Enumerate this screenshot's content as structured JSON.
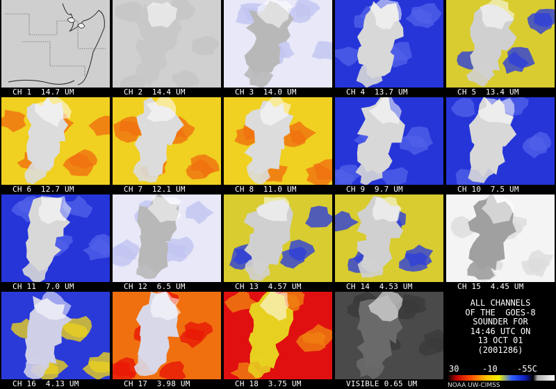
{
  "tiles": [
    {
      "label": "CH 1  14.7 UM",
      "style": "map"
    },
    {
      "label": "CH 2  14.4 UM",
      "style": "gray"
    },
    {
      "label": "CH 3  14.0 UM",
      "style": "pale"
    },
    {
      "label": "CH 4  13.7 UM",
      "style": "blue"
    },
    {
      "label": "CH 5  13.4 UM",
      "style": "blueyellow"
    },
    {
      "label": "CH 6  12.7 UM",
      "style": "warm"
    },
    {
      "label": "CH 7  12.1 UM",
      "style": "warm"
    },
    {
      "label": "CH 8  11.0 UM",
      "style": "warm"
    },
    {
      "label": "CH 9  9.7 UM",
      "style": "blue"
    },
    {
      "label": "CH 10  7.5 UM",
      "style": "blue"
    },
    {
      "label": "CH 11  7.0 UM",
      "style": "blue"
    },
    {
      "label": "CH 12  6.5 UM",
      "style": "pale"
    },
    {
      "label": "CH 13  4.57 UM",
      "style": "blueyellow"
    },
    {
      "label": "CH 14  4.53 UM",
      "style": "blueyellow"
    },
    {
      "label": "CH 15  4.45 UM",
      "style": "speckle"
    },
    {
      "label": "CH 16  4.13 UM",
      "style": "warmblue"
    },
    {
      "label": "CH 17  3.98 UM",
      "style": "hot"
    },
    {
      "label": "CH 18  3.75 UM",
      "style": "hotter"
    },
    {
      "label": "VISIBLE 0.65 UM",
      "style": "visible"
    }
  ],
  "caption": [
    "ALL CHANNELS",
    "OF THE  GOES-8",
    "SOUNDER FOR",
    "14:46 UTC ON",
    "13 OCT 01",
    "(2001286)"
  ],
  "scale": {
    "left": "30",
    "mid": "-10",
    "right": "-55C"
  },
  "credit": "NOAA UW-CIMSS",
  "colors": {
    "background": "#000000",
    "text": "#ffffff",
    "blue": "#2233dd",
    "yellow": "#e8d820",
    "orange": "#f07010",
    "red": "#dd1010",
    "cloud": "#dddddd"
  }
}
